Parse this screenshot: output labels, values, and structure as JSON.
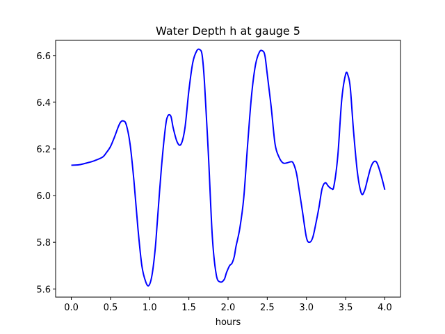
{
  "chart_data": {
    "type": "line",
    "title": "Water Depth h at gauge 5",
    "xlabel": "hours",
    "ylabel": "",
    "xlim": [
      -0.2,
      4.2
    ],
    "ylim": [
      5.565,
      6.665
    ],
    "x_ticks": [
      0.0,
      0.5,
      1.0,
      1.5,
      2.0,
      2.5,
      3.0,
      3.5,
      4.0
    ],
    "x_tick_labels": [
      "0.0",
      "0.5",
      "1.0",
      "1.5",
      "2.0",
      "2.5",
      "3.0",
      "3.5",
      "4.0"
    ],
    "y_ticks": [
      5.6,
      5.8,
      6.0,
      6.2,
      6.4,
      6.6
    ],
    "y_tick_labels": [
      "5.6",
      "5.8",
      "6.0",
      "6.2",
      "6.4",
      "6.6"
    ],
    "grid": false,
    "series": [
      {
        "color": "#0000ff",
        "x": [
          0.0,
          0.1,
          0.2,
          0.3,
          0.4,
          0.45,
          0.5,
          0.55,
          0.6,
          0.63,
          0.66,
          0.7,
          0.75,
          0.8,
          0.85,
          0.9,
          0.95,
          0.99,
          1.03,
          1.07,
          1.1,
          1.15,
          1.2,
          1.23,
          1.27,
          1.3,
          1.35,
          1.4,
          1.45,
          1.5,
          1.55,
          1.6,
          1.64,
          1.67,
          1.7,
          1.75,
          1.8,
          1.85,
          1.9,
          1.95,
          1.98,
          2.02,
          2.05,
          2.08,
          2.1,
          2.15,
          2.2,
          2.25,
          2.3,
          2.35,
          2.4,
          2.44,
          2.47,
          2.5,
          2.55,
          2.6,
          2.65,
          2.7,
          2.75,
          2.8,
          2.83,
          2.87,
          2.9,
          2.95,
          3.0,
          3.04,
          3.08,
          3.12,
          3.16,
          3.2,
          3.24,
          3.28,
          3.32,
          3.35,
          3.4,
          3.45,
          3.5,
          3.53,
          3.56,
          3.6,
          3.65,
          3.7,
          3.74,
          3.78,
          3.82,
          3.86,
          3.9,
          3.95,
          4.0
        ],
        "y": [
          6.13,
          6.132,
          6.14,
          6.15,
          6.165,
          6.185,
          6.21,
          6.25,
          6.295,
          6.315,
          6.32,
          6.305,
          6.22,
          6.06,
          5.86,
          5.7,
          5.63,
          5.615,
          5.66,
          5.77,
          5.9,
          6.12,
          6.29,
          6.34,
          6.34,
          6.29,
          6.23,
          6.22,
          6.29,
          6.45,
          6.57,
          6.62,
          6.625,
          6.6,
          6.48,
          6.17,
          5.82,
          5.66,
          5.63,
          5.64,
          5.67,
          5.7,
          5.71,
          5.74,
          5.78,
          5.86,
          5.99,
          6.22,
          6.43,
          6.56,
          6.615,
          6.62,
          6.6,
          6.52,
          6.38,
          6.22,
          6.165,
          6.14,
          6.14,
          6.145,
          6.14,
          6.1,
          6.04,
          5.93,
          5.82,
          5.8,
          5.82,
          5.88,
          5.95,
          6.03,
          6.055,
          6.04,
          6.03,
          6.04,
          6.17,
          6.41,
          6.52,
          6.515,
          6.46,
          6.28,
          6.1,
          6.01,
          6.02,
          6.07,
          6.12,
          6.145,
          6.14,
          6.09,
          6.025
        ]
      }
    ]
  }
}
